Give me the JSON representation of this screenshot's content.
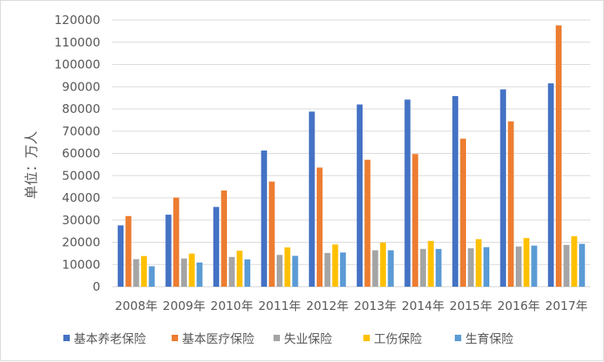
{
  "chart_data": {
    "type": "bar",
    "title": "",
    "xlabel": "",
    "ylabel": "单位：万人",
    "ylim": [
      0,
      120000
    ],
    "yticks": [
      0,
      10000,
      20000,
      30000,
      40000,
      50000,
      60000,
      70000,
      80000,
      90000,
      100000,
      110000,
      120000
    ],
    "grid": true,
    "legend": "bottom",
    "categories": [
      "2008年",
      "2009年",
      "2010年",
      "2011年",
      "2012年",
      "2013年",
      "2014年",
      "2015年",
      "2016年",
      "2017年"
    ],
    "series": [
      {
        "name": "基本养老保险",
        "color": "#4472C4",
        "values": [
          27600,
          32400,
          35900,
          61300,
          78800,
          82000,
          84200,
          85800,
          88800,
          91500
        ]
      },
      {
        "name": "基本医疗保险",
        "color": "#ED7D31",
        "values": [
          31800,
          40100,
          43300,
          47300,
          53600,
          57100,
          59700,
          66600,
          74400,
          117600
        ]
      },
      {
        "name": "失业保险",
        "color": "#A5A5A5",
        "values": [
          12400,
          12700,
          13400,
          14300,
          15200,
          16400,
          17000,
          17300,
          18100,
          18800
        ]
      },
      {
        "name": "工伤保险",
        "color": "#FFC000",
        "values": [
          13800,
          14900,
          16200,
          17700,
          19000,
          19900,
          20600,
          21400,
          21900,
          22700
        ]
      },
      {
        "name": "生育保险",
        "color": "#5B9BD5",
        "values": [
          9200,
          10900,
          12300,
          13900,
          15400,
          16400,
          17000,
          17800,
          18500,
          19300
        ]
      }
    ]
  }
}
